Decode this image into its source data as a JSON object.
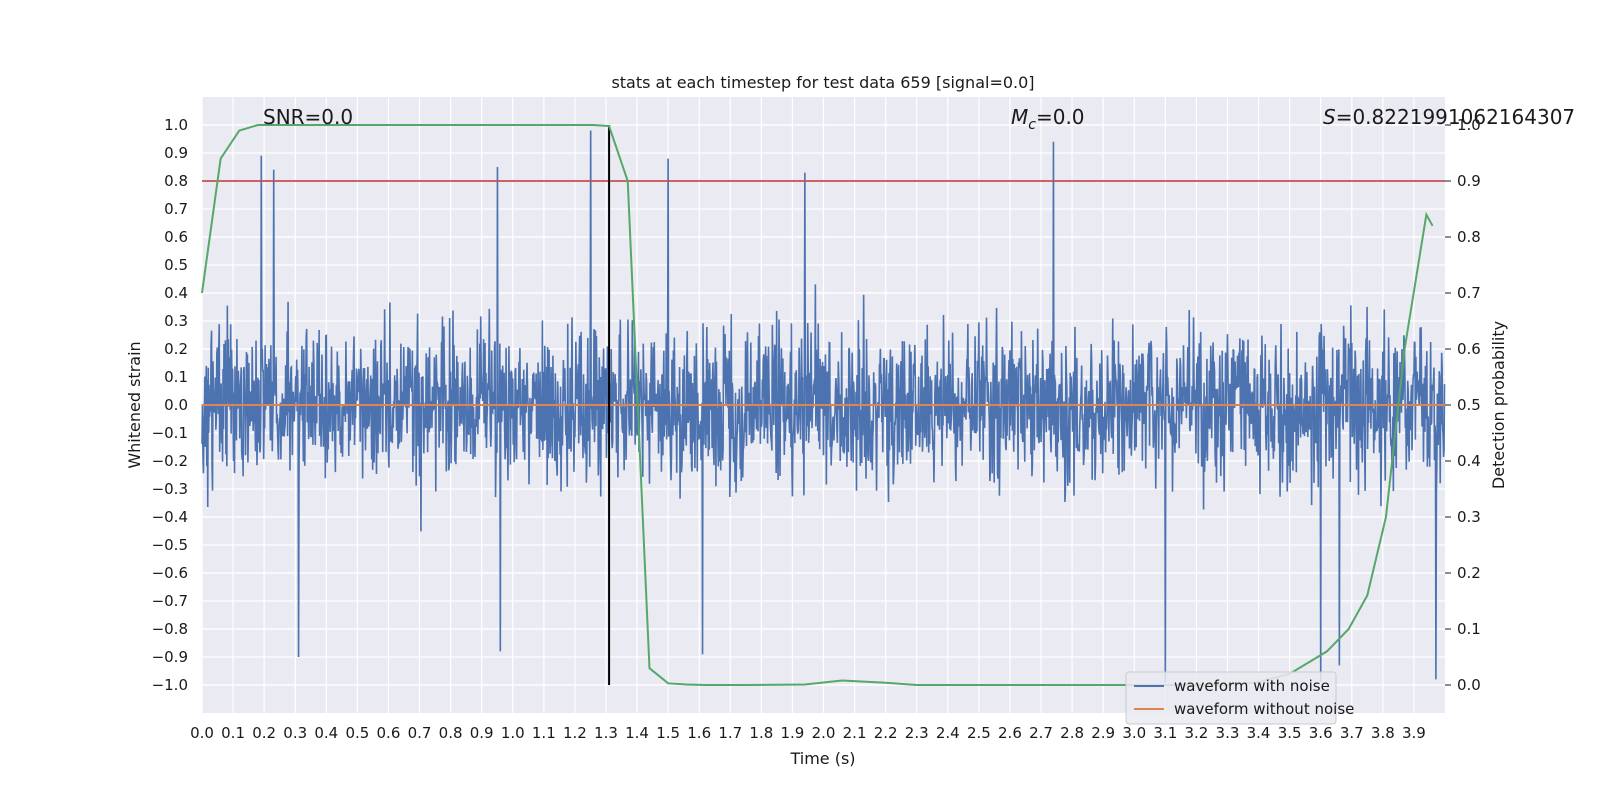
{
  "chart_data": {
    "type": "line",
    "title": "stats at each timestep for test data 659 [signal=0.0]",
    "xlabel": "Time (s)",
    "ylabel_left": "Whitened strain",
    "ylabel_right": "Detection probability",
    "xlim": [
      0.0,
      4.0
    ],
    "ylim_left": [
      -1.1,
      1.1
    ],
    "ylim_right": [
      -0.05,
      1.05
    ],
    "grid": true,
    "legend_placement": "bottom-right",
    "x_ticks": [
      "0.0",
      "0.1",
      "0.2",
      "0.3",
      "0.4",
      "0.5",
      "0.6",
      "0.7",
      "0.8",
      "0.9",
      "1.0",
      "1.1",
      "1.2",
      "1.3",
      "1.4",
      "1.5",
      "1.6",
      "1.7",
      "1.8",
      "1.9",
      "2.0",
      "2.1",
      "2.2",
      "2.3",
      "2.4",
      "2.5",
      "2.6",
      "2.7",
      "2.8",
      "2.9",
      "3.0",
      "3.1",
      "3.2",
      "3.3",
      "3.4",
      "3.5",
      "3.6",
      "3.7",
      "3.8",
      "3.9"
    ],
    "y_ticks_left": [
      "−1.0",
      "−0.9",
      "−0.8",
      "−0.7",
      "−0.6",
      "−0.5",
      "−0.4",
      "−0.3",
      "−0.2",
      "−0.1",
      "0.0",
      "0.1",
      "0.2",
      "0.3",
      "0.4",
      "0.5",
      "0.6",
      "0.7",
      "0.8",
      "0.9",
      "1.0"
    ],
    "y_ticks_right": [
      "0.0",
      "0.1",
      "0.2",
      "0.3",
      "0.4",
      "0.5",
      "0.6",
      "0.7",
      "0.8",
      "0.9",
      "1.0"
    ],
    "annotations": {
      "snr": "SNR=0.0",
      "mc_symbol": "M",
      "mc_subscript": "c",
      "mc_value": "=0.0",
      "s_symbol": "S",
      "s_value": "=0.8221991062164307"
    },
    "legend": [
      "waveform with noise",
      "waveform without noise"
    ],
    "series": [
      {
        "name": "waveform with noise",
        "color": "#4c72b0",
        "axis": "left",
        "description_values": "dense noise, amplitude mostly within ±0.5, peaks near ±0.9",
        "peaks": [
          {
            "x": 0.19,
            "y": 0.89
          },
          {
            "x": 0.23,
            "y": 0.84
          },
          {
            "x": 0.31,
            "y": -0.9
          },
          {
            "x": 0.95,
            "y": 0.85
          },
          {
            "x": 0.96,
            "y": -0.88
          },
          {
            "x": 1.25,
            "y": 0.98
          },
          {
            "x": 1.5,
            "y": 0.88
          },
          {
            "x": 1.61,
            "y": -0.89
          },
          {
            "x": 1.94,
            "y": 0.83
          },
          {
            "x": 2.74,
            "y": 0.94
          },
          {
            "x": 3.1,
            "y": -0.99
          },
          {
            "x": 3.6,
            "y": -0.99
          },
          {
            "x": 3.66,
            "y": -0.93
          },
          {
            "x": 3.97,
            "y": -0.98
          }
        ]
      },
      {
        "name": "waveform without noise",
        "color": "#dd8452",
        "axis": "left",
        "x": [
          0.0,
          4.0
        ],
        "y": [
          0.0,
          0.0
        ]
      },
      {
        "name": "",
        "color": "#55a868",
        "axis": "right",
        "x": [
          0.0,
          0.06,
          0.12,
          0.18,
          0.25,
          0.5,
          0.8,
          1.0,
          1.2,
          1.26,
          1.31,
          1.37,
          1.44,
          1.5,
          1.56,
          1.62,
          1.75,
          1.94,
          2.06,
          2.2,
          2.3,
          2.5,
          2.8,
          3.0,
          3.2,
          3.3,
          3.4,
          3.5,
          3.56,
          3.62,
          3.69,
          3.75,
          3.81,
          3.87,
          3.94,
          3.96
        ],
        "y": [
          0.7,
          0.94,
          0.99,
          1.0,
          1.0,
          1.0,
          1.0,
          1.0,
          1.0,
          1.0,
          0.998,
          0.9,
          0.03,
          0.003,
          0.001,
          0.0,
          0.0,
          0.001,
          0.008,
          0.004,
          0.0,
          0.0,
          0.0,
          0.0,
          0.0,
          0.0,
          0.005,
          0.02,
          0.04,
          0.06,
          0.1,
          0.16,
          0.3,
          0.6,
          0.84,
          0.82
        ]
      }
    ],
    "reference_lines": {
      "threshold": {
        "axis": "right",
        "y": 0.9,
        "color": "#c44e52"
      },
      "event_time": {
        "x": 1.31,
        "y_from": -1.0,
        "y_to": 1.0,
        "color": "#000000"
      }
    }
  }
}
